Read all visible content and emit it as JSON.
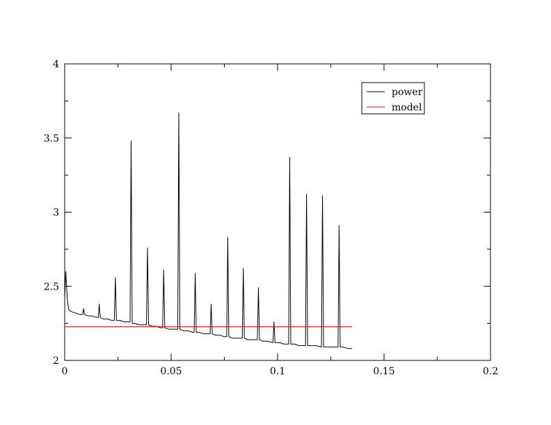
{
  "chart_data": {
    "type": "line",
    "title": "",
    "xlabel": "",
    "ylabel": "",
    "xlim": [
      0,
      0.2
    ],
    "ylim": [
      2,
      4
    ],
    "x_ticks": [
      0,
      0.05,
      0.1,
      0.15,
      0.2
    ],
    "x_tick_labels": [
      "0",
      "0.05",
      "0.1",
      "0.15",
      "0.2"
    ],
    "y_ticks": [
      2,
      2.5,
      3,
      3.5,
      4
    ],
    "y_tick_labels": [
      "2",
      "2.5",
      "3",
      "3.5",
      "4"
    ],
    "grid": false,
    "legend_position": "top-right",
    "series": [
      {
        "name": "power",
        "color": "#000000",
        "x": [
          0.0,
          0.0005,
          0.001,
          0.0013,
          0.0017,
          0.002,
          0.003,
          0.005,
          0.007,
          0.0085,
          0.0088,
          0.0093,
          0.011,
          0.013,
          0.015,
          0.0158,
          0.0162,
          0.0167,
          0.018,
          0.02,
          0.022,
          0.0233,
          0.0238,
          0.0243,
          0.026,
          0.028,
          0.03,
          0.0307,
          0.0312,
          0.0317,
          0.033,
          0.035,
          0.037,
          0.0384,
          0.0389,
          0.0394,
          0.041,
          0.043,
          0.045,
          0.046,
          0.0465,
          0.047,
          0.049,
          0.051,
          0.0531,
          0.0536,
          0.0541,
          0.056,
          0.058,
          0.06,
          0.0608,
          0.0613,
          0.0618,
          0.063,
          0.065,
          0.067,
          0.0683,
          0.0688,
          0.0693,
          0.071,
          0.073,
          0.075,
          0.0761,
          0.0766,
          0.0771,
          0.079,
          0.081,
          0.0834,
          0.0839,
          0.0844,
          0.086,
          0.088,
          0.0905,
          0.091,
          0.0915,
          0.093,
          0.095,
          0.0978,
          0.0983,
          0.0988,
          0.101,
          0.103,
          0.1052,
          0.1057,
          0.1062,
          0.108,
          0.11,
          0.112,
          0.1131,
          0.1136,
          0.1141,
          0.116,
          0.118,
          0.1206,
          0.1211,
          0.1216,
          0.123,
          0.125,
          0.127,
          0.1284,
          0.1289,
          0.1294,
          0.131,
          0.133,
          0.135
        ],
        "y": [
          2.42,
          2.6,
          2.47,
          2.4,
          2.36,
          2.34,
          2.33,
          2.32,
          2.31,
          2.31,
          2.35,
          2.31,
          2.3,
          2.3,
          2.29,
          2.29,
          2.38,
          2.29,
          2.28,
          2.28,
          2.27,
          2.27,
          2.56,
          2.27,
          2.27,
          2.26,
          2.26,
          2.26,
          3.48,
          2.25,
          2.25,
          2.24,
          2.24,
          2.24,
          2.76,
          2.24,
          2.23,
          2.23,
          2.22,
          2.22,
          2.61,
          2.22,
          2.21,
          2.21,
          2.21,
          3.67,
          2.21,
          2.2,
          2.2,
          2.19,
          2.19,
          2.59,
          2.19,
          2.19,
          2.18,
          2.18,
          2.18,
          2.38,
          2.18,
          2.17,
          2.17,
          2.16,
          2.16,
          2.83,
          2.16,
          2.15,
          2.15,
          2.15,
          2.62,
          2.15,
          2.14,
          2.14,
          2.14,
          2.49,
          2.14,
          2.13,
          2.13,
          2.12,
          2.26,
          2.12,
          2.12,
          2.11,
          2.11,
          3.37,
          2.11,
          2.11,
          2.1,
          2.1,
          2.1,
          3.12,
          2.1,
          2.1,
          2.1,
          2.09,
          3.11,
          2.09,
          2.09,
          2.09,
          2.09,
          2.09,
          2.91,
          2.09,
          2.09,
          2.08,
          2.08
        ]
      },
      {
        "name": "model",
        "color": "#ff0000",
        "x": [
          0.0,
          0.135
        ],
        "y": [
          2.228,
          2.228
        ]
      }
    ]
  }
}
